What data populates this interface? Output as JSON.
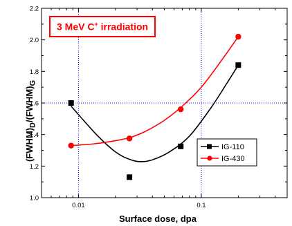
{
  "chart_data": {
    "type": "scatter",
    "title": "",
    "annotation": {
      "prefix": "3 MeV C",
      "sup": "+",
      "suffix": " irradiation"
    },
    "xlabel": "Surface dose, dpa",
    "ylabel_main": "(FWHM)",
    "ylabel_sub1": "D",
    "ylabel_mid": "/(FWHM)",
    "ylabel_sub2": "G",
    "xscale": "log",
    "xlim": [
      0.005,
      0.5
    ],
    "ylim": [
      1.0,
      2.2
    ],
    "xticks": [
      {
        "value": 0.01,
        "label": "0.01"
      },
      {
        "value": 0.1,
        "label": "0.1"
      }
    ],
    "yticks": [
      1.0,
      1.2,
      1.4,
      1.6,
      1.8,
      2.0,
      2.2
    ],
    "gridlines_x": [
      0.01,
      0.1
    ],
    "gridlines_y": [
      1.6
    ],
    "legend_position": "lower-right",
    "series": [
      {
        "name": "IG-110",
        "color": "#000000",
        "marker": "square",
        "points": [
          [
            0.0087,
            1.6
          ],
          [
            0.026,
            1.13
          ],
          [
            0.068,
            1.325
          ],
          [
            0.2,
            1.84
          ]
        ],
        "fit": [
          [
            0.0087,
            1.58
          ],
          [
            0.014,
            1.4
          ],
          [
            0.02,
            1.29
          ],
          [
            0.026,
            1.243
          ],
          [
            0.032,
            1.228
          ],
          [
            0.04,
            1.24
          ],
          [
            0.055,
            1.29
          ],
          [
            0.08,
            1.39
          ],
          [
            0.12,
            1.57
          ],
          [
            0.16,
            1.72
          ],
          [
            0.2,
            1.84
          ]
        ]
      },
      {
        "name": "IG-430",
        "color": "#ff0000",
        "marker": "circle",
        "points": [
          [
            0.0087,
            1.33
          ],
          [
            0.026,
            1.375
          ],
          [
            0.068,
            1.56
          ],
          [
            0.2,
            2.02
          ]
        ],
        "fit": [
          [
            0.0087,
            1.33
          ],
          [
            0.013,
            1.34
          ],
          [
            0.018,
            1.355
          ],
          [
            0.026,
            1.38
          ],
          [
            0.035,
            1.42
          ],
          [
            0.05,
            1.49
          ],
          [
            0.07,
            1.58
          ],
          [
            0.1,
            1.7
          ],
          [
            0.14,
            1.85
          ],
          [
            0.2,
            2.02
          ]
        ]
      }
    ]
  }
}
